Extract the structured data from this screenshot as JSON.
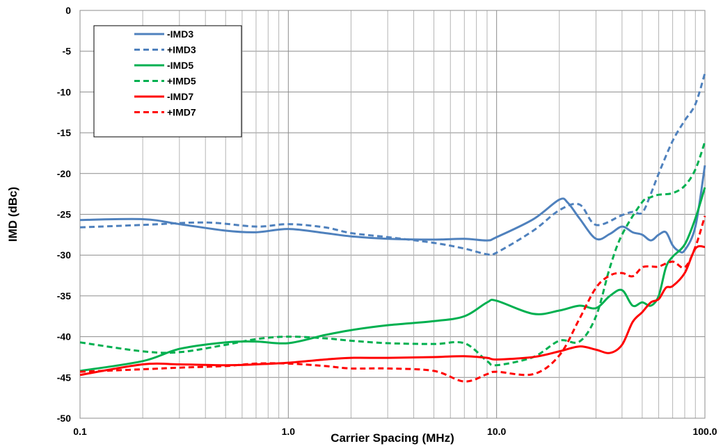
{
  "chart_data": {
    "type": "line",
    "title": "",
    "xlabel": "Carrier Spacing (MHz)",
    "ylabel": "IMD (dBc)",
    "xscale": "log",
    "xlim": [
      0.1,
      100.0
    ],
    "ylim": [
      -50,
      0
    ],
    "x_ticks": [
      "0.1",
      "1.0",
      "10.0",
      "100.0"
    ],
    "y_ticks": [
      "0",
      "-5",
      "-10",
      "-15",
      "-20",
      "-25",
      "-30",
      "-35",
      "-40",
      "-45",
      "-50"
    ],
    "grid": true,
    "legend_position": "top-left",
    "series": [
      {
        "name": "-IMD3",
        "color": "#4F81BD",
        "dash": "solid",
        "points": [
          [
            0.1,
            -25.7
          ],
          [
            0.2,
            -25.6
          ],
          [
            0.3,
            -26.2
          ],
          [
            0.5,
            -27.0
          ],
          [
            0.7,
            -27.2
          ],
          [
            1.0,
            -26.8
          ],
          [
            1.5,
            -27.3
          ],
          [
            2.0,
            -27.7
          ],
          [
            3.0,
            -28.0
          ],
          [
            5.0,
            -28.1
          ],
          [
            7.0,
            -28.0
          ],
          [
            9.0,
            -28.2
          ],
          [
            10.0,
            -27.8
          ],
          [
            15.0,
            -25.6
          ],
          [
            20.0,
            -23.2
          ],
          [
            22.0,
            -23.6
          ],
          [
            25.0,
            -25.5
          ],
          [
            30.0,
            -28.0
          ],
          [
            35.0,
            -27.4
          ],
          [
            40.0,
            -26.5
          ],
          [
            45.0,
            -27.2
          ],
          [
            50.0,
            -27.5
          ],
          [
            55.0,
            -28.2
          ],
          [
            60.0,
            -27.5
          ],
          [
            65.0,
            -27.2
          ],
          [
            70.0,
            -28.8
          ],
          [
            75.0,
            -29.5
          ],
          [
            80.0,
            -29.4
          ],
          [
            90.0,
            -26.5
          ],
          [
            100.0,
            -19.0
          ]
        ]
      },
      {
        "name": "+IMD3",
        "color": "#4F81BD",
        "dash": "dashed",
        "points": [
          [
            0.1,
            -26.6
          ],
          [
            0.2,
            -26.3
          ],
          [
            0.4,
            -26.0
          ],
          [
            0.7,
            -26.5
          ],
          [
            1.0,
            -26.2
          ],
          [
            1.5,
            -26.6
          ],
          [
            2.0,
            -27.3
          ],
          [
            3.0,
            -27.8
          ],
          [
            5.0,
            -28.5
          ],
          [
            7.0,
            -29.2
          ],
          [
            9.0,
            -29.9
          ],
          [
            10.0,
            -29.7
          ],
          [
            15.0,
            -27.0
          ],
          [
            20.0,
            -24.5
          ],
          [
            25.0,
            -23.8
          ],
          [
            30.0,
            -26.3
          ],
          [
            40.0,
            -25.1
          ],
          [
            45.0,
            -24.7
          ],
          [
            50.0,
            -24.8
          ],
          [
            55.0,
            -22.5
          ],
          [
            60.0,
            -20.0
          ],
          [
            70.0,
            -16.0
          ],
          [
            80.0,
            -13.5
          ],
          [
            90.0,
            -11.5
          ],
          [
            100.0,
            -7.7
          ]
        ]
      },
      {
        "name": "-IMD5",
        "color": "#00B050",
        "dash": "solid",
        "points": [
          [
            0.1,
            -44.2
          ],
          [
            0.2,
            -43.0
          ],
          [
            0.3,
            -41.5
          ],
          [
            0.5,
            -40.7
          ],
          [
            0.7,
            -40.6
          ],
          [
            1.0,
            -40.8
          ],
          [
            1.5,
            -39.8
          ],
          [
            2.0,
            -39.2
          ],
          [
            3.0,
            -38.6
          ],
          [
            5.0,
            -38.1
          ],
          [
            7.0,
            -37.5
          ],
          [
            9.0,
            -35.8
          ],
          [
            10.0,
            -35.6
          ],
          [
            15.0,
            -37.2
          ],
          [
            20.0,
            -36.8
          ],
          [
            25.0,
            -36.2
          ],
          [
            30.0,
            -36.5
          ],
          [
            35.0,
            -35.0
          ],
          [
            40.0,
            -34.3
          ],
          [
            45.0,
            -36.2
          ],
          [
            50.0,
            -35.8
          ],
          [
            55.0,
            -36.2
          ],
          [
            60.0,
            -35.0
          ],
          [
            65.0,
            -31.5
          ],
          [
            70.0,
            -30.2
          ],
          [
            80.0,
            -28.7
          ],
          [
            90.0,
            -25.5
          ],
          [
            100.0,
            -21.7
          ]
        ]
      },
      {
        "name": "+IMD5",
        "color": "#00B050",
        "dash": "dashed",
        "points": [
          [
            0.1,
            -40.7
          ],
          [
            0.2,
            -41.8
          ],
          [
            0.3,
            -41.9
          ],
          [
            0.5,
            -41.0
          ],
          [
            0.7,
            -40.3
          ],
          [
            1.0,
            -40.0
          ],
          [
            1.5,
            -40.2
          ],
          [
            2.0,
            -40.5
          ],
          [
            3.0,
            -40.8
          ],
          [
            5.0,
            -40.9
          ],
          [
            7.0,
            -40.8
          ],
          [
            9.0,
            -43.0
          ],
          [
            10.0,
            -43.5
          ],
          [
            15.0,
            -42.5
          ],
          [
            20.0,
            -40.5
          ],
          [
            25.0,
            -40.6
          ],
          [
            30.0,
            -37.5
          ],
          [
            35.0,
            -31.5
          ],
          [
            40.0,
            -27.5
          ],
          [
            50.0,
            -23.5
          ],
          [
            55.0,
            -22.9
          ],
          [
            60.0,
            -22.6
          ],
          [
            70.0,
            -22.4
          ],
          [
            80.0,
            -21.5
          ],
          [
            90.0,
            -19.5
          ],
          [
            100.0,
            -16.1
          ]
        ]
      },
      {
        "name": "-IMD7",
        "color": "#FF0000",
        "dash": "solid",
        "points": [
          [
            0.1,
            -44.7
          ],
          [
            0.2,
            -43.4
          ],
          [
            0.3,
            -43.4
          ],
          [
            0.5,
            -43.5
          ],
          [
            0.7,
            -43.4
          ],
          [
            1.0,
            -43.2
          ],
          [
            1.5,
            -42.8
          ],
          [
            2.0,
            -42.6
          ],
          [
            3.0,
            -42.6
          ],
          [
            5.0,
            -42.5
          ],
          [
            7.0,
            -42.4
          ],
          [
            9.0,
            -42.6
          ],
          [
            10.0,
            -42.8
          ],
          [
            15.0,
            -42.5
          ],
          [
            20.0,
            -41.8
          ],
          [
            25.0,
            -41.2
          ],
          [
            30.0,
            -41.6
          ],
          [
            35.0,
            -42.0
          ],
          [
            40.0,
            -41.0
          ],
          [
            45.0,
            -38.2
          ],
          [
            50.0,
            -37.0
          ],
          [
            55.0,
            -35.8
          ],
          [
            60.0,
            -35.4
          ],
          [
            65.0,
            -34.0
          ],
          [
            70.0,
            -33.8
          ],
          [
            80.0,
            -32.2
          ],
          [
            90.0,
            -29.2
          ],
          [
            100.0,
            -29.0
          ]
        ]
      },
      {
        "name": "+IMD7",
        "color": "#FF0000",
        "dash": "dashed",
        "points": [
          [
            0.1,
            -44.3
          ],
          [
            0.2,
            -44.0
          ],
          [
            0.3,
            -43.8
          ],
          [
            0.5,
            -43.6
          ],
          [
            0.7,
            -43.3
          ],
          [
            1.0,
            -43.3
          ],
          [
            1.5,
            -43.6
          ],
          [
            2.0,
            -43.9
          ],
          [
            3.0,
            -43.9
          ],
          [
            5.0,
            -44.2
          ],
          [
            7.0,
            -45.5
          ],
          [
            9.0,
            -44.6
          ],
          [
            10.0,
            -44.3
          ],
          [
            15.0,
            -44.6
          ],
          [
            20.0,
            -42.3
          ],
          [
            25.0,
            -37.8
          ],
          [
            30.0,
            -34.0
          ],
          [
            35.0,
            -32.5
          ],
          [
            40.0,
            -32.2
          ],
          [
            45.0,
            -32.6
          ],
          [
            50.0,
            -31.5
          ],
          [
            55.0,
            -31.4
          ],
          [
            60.0,
            -31.4
          ],
          [
            70.0,
            -30.8
          ],
          [
            80.0,
            -31.5
          ],
          [
            90.0,
            -29.0
          ],
          [
            100.0,
            -25.2
          ]
        ]
      }
    ]
  }
}
